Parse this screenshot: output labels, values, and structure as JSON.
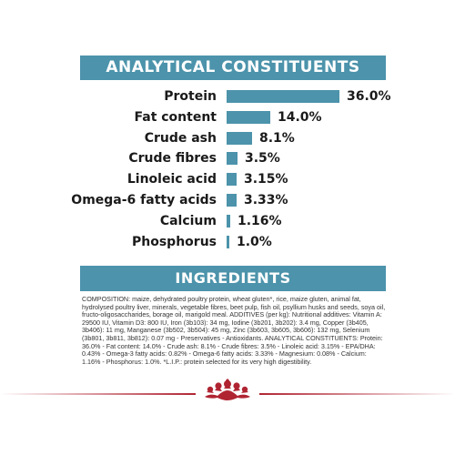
{
  "analytical": {
    "title": "ANALYTICAL CONSTITUENTS",
    "rows": [
      {
        "label": "Protein",
        "value": "36.0%",
        "pct": 36.0
      },
      {
        "label": "Fat content",
        "value": "14.0%",
        "pct": 14.0
      },
      {
        "label": "Crude ash",
        "value": "8.1%",
        "pct": 8.1
      },
      {
        "label": "Crude fibres",
        "value": "3.5%",
        "pct": 3.5
      },
      {
        "label": "Linoleic acid",
        "value": "3.15%",
        "pct": 3.15
      },
      {
        "label": "Omega-6 fatty acids",
        "value": "3.33%",
        "pct": 3.33
      },
      {
        "label": "Calcium",
        "value": "1.16%",
        "pct": 1.16
      },
      {
        "label": "Phosphorus",
        "value": "1.0%",
        "pct": 1.0
      }
    ]
  },
  "ingredients": {
    "title": "INGREDIENTS",
    "text": "COMPOSITION: maize, dehydrated poultry protein, wheat gluten*, rice, maize gluten, animal fat, hydrolysed poultry liver, minerals, vegetable fibres, beet pulp, fish oil, psyllium husks and seeds, soya oil, fructo-oligosaccharides, borage oil, marigold meal. ADDITIVES (per kg): Nutritional additives: Vitamin A: 29500 IU, Vitamin D3: 800 IU, Iron (3b103): 34 mg, Iodine (3b201, 3b202): 3.4 mg, Copper (3b405, 3b406): 11 mg, Manganese (3b502, 3b504): 45 mg, Zinc (3b603, 3b605, 3b606): 132 mg, Selenium (3b801, 3b811, 3b812): 0.07 mg - Preservatives - Antioxidants. ANALYTICAL CONSTITUENTS: Protein: 36.0% - Fat content: 14.0% - Crude ash: 8.1% - Crude fibres: 3.5% - Linoleic acid: 3.15% - EPA/DHA: 0.43% - Omega-3 fatty acids: 0.82% - Omega-6 fatty acids: 3.33% - Magnesium: 0.08% - Calcium: 1.16% - Phosphorus: 1.0%. *L.I.P.: protein selected for its very high digestibility."
  },
  "colors": {
    "accent": "#4c93ab",
    "brand_red": "#b02432"
  },
  "footer": {
    "logo_icon": "crown-icon"
  }
}
